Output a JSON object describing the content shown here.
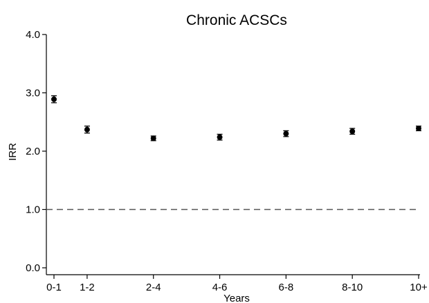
{
  "chart_data": {
    "type": "scatter",
    "title": "Chronic ACSCs",
    "xlabel": "Years",
    "ylabel": "IRR",
    "ylim": [
      0.0,
      4.0
    ],
    "yticks": [
      {
        "value": 0.0,
        "label": "0.0"
      },
      {
        "value": 1.0,
        "label": "1.0"
      },
      {
        "value": 2.0,
        "label": "2.0"
      },
      {
        "value": 3.0,
        "label": "3.0"
      },
      {
        "value": 4.0,
        "label": "4.0"
      }
    ],
    "categories": [
      "0-1",
      "1-2",
      "2-4",
      "4-6",
      "6-8",
      "8-10",
      "10+"
    ],
    "x": [
      0,
      1,
      3,
      5,
      7,
      9,
      11
    ],
    "values": [
      2.89,
      2.37,
      2.22,
      2.24,
      2.3,
      2.34,
      2.39
    ],
    "ci_lower": [
      2.83,
      2.31,
      2.18,
      2.19,
      2.25,
      2.29,
      2.35
    ],
    "ci_upper": [
      2.95,
      2.43,
      2.26,
      2.29,
      2.35,
      2.39,
      2.43
    ],
    "reference_line": {
      "value": 1.0,
      "style": "dashed"
    },
    "grid": false,
    "marker_color": "#000000",
    "reference_line_color": "#555555"
  }
}
